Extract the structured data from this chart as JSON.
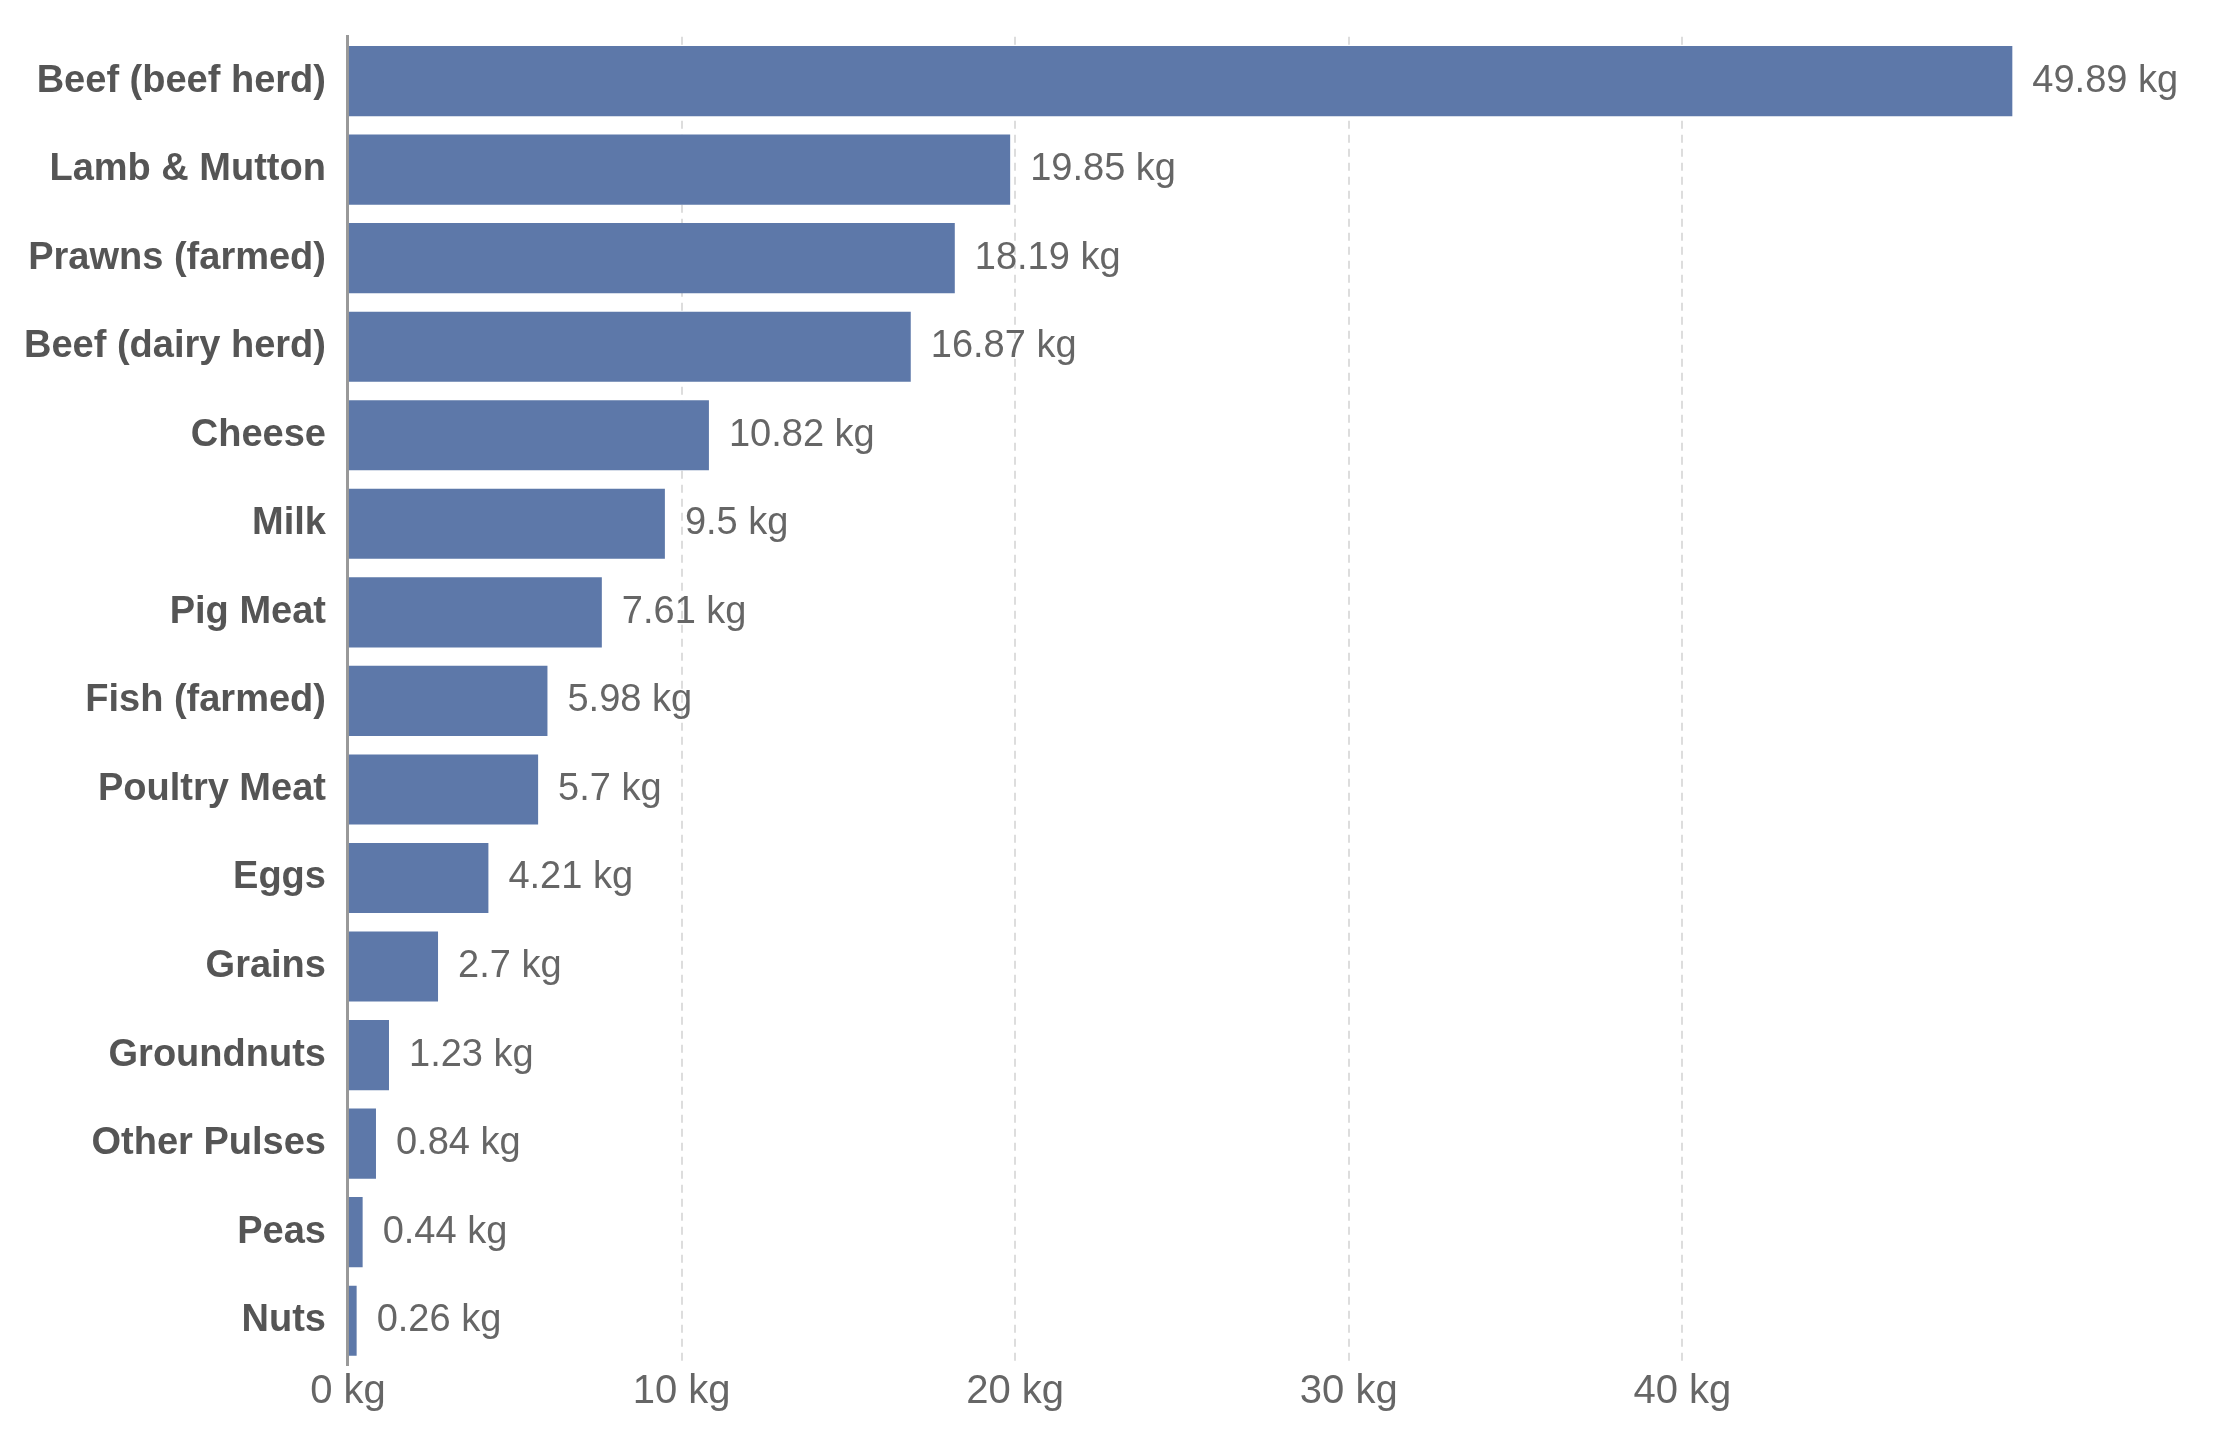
{
  "chart_data": {
    "type": "bar",
    "orientation": "horizontal",
    "categories": [
      "Beef (beef herd)",
      "Lamb & Mutton",
      "Prawns (farmed)",
      "Beef (dairy herd)",
      "Cheese",
      "Milk",
      "Pig Meat",
      "Fish (farmed)",
      "Poultry Meat",
      "Eggs",
      "Grains",
      "Groundnuts",
      "Other Pulses",
      "Peas",
      "Nuts"
    ],
    "values": [
      49.89,
      19.85,
      18.19,
      16.87,
      10.82,
      9.5,
      7.61,
      5.98,
      5.7,
      4.21,
      2.7,
      1.23,
      0.84,
      0.44,
      0.26
    ],
    "value_labels": [
      "49.89 kg",
      "19.85 kg",
      "18.19 kg",
      "16.87 kg",
      "10.82 kg",
      "9.5 kg",
      "7.61 kg",
      "5.98 kg",
      "5.7 kg",
      "4.21 kg",
      "2.7 kg",
      "1.23 kg",
      "0.84 kg",
      "0.44 kg",
      "0.26 kg"
    ],
    "color": "#5d78a9",
    "xlim": [
      0,
      50
    ],
    "xticks": [
      {
        "value": 0,
        "label": "0 kg"
      },
      {
        "value": 10,
        "label": "10 kg"
      },
      {
        "value": 20,
        "label": "20 kg"
      },
      {
        "value": 30,
        "label": "30 kg"
      },
      {
        "value": 40,
        "label": "40 kg"
      }
    ],
    "grid": "x"
  }
}
